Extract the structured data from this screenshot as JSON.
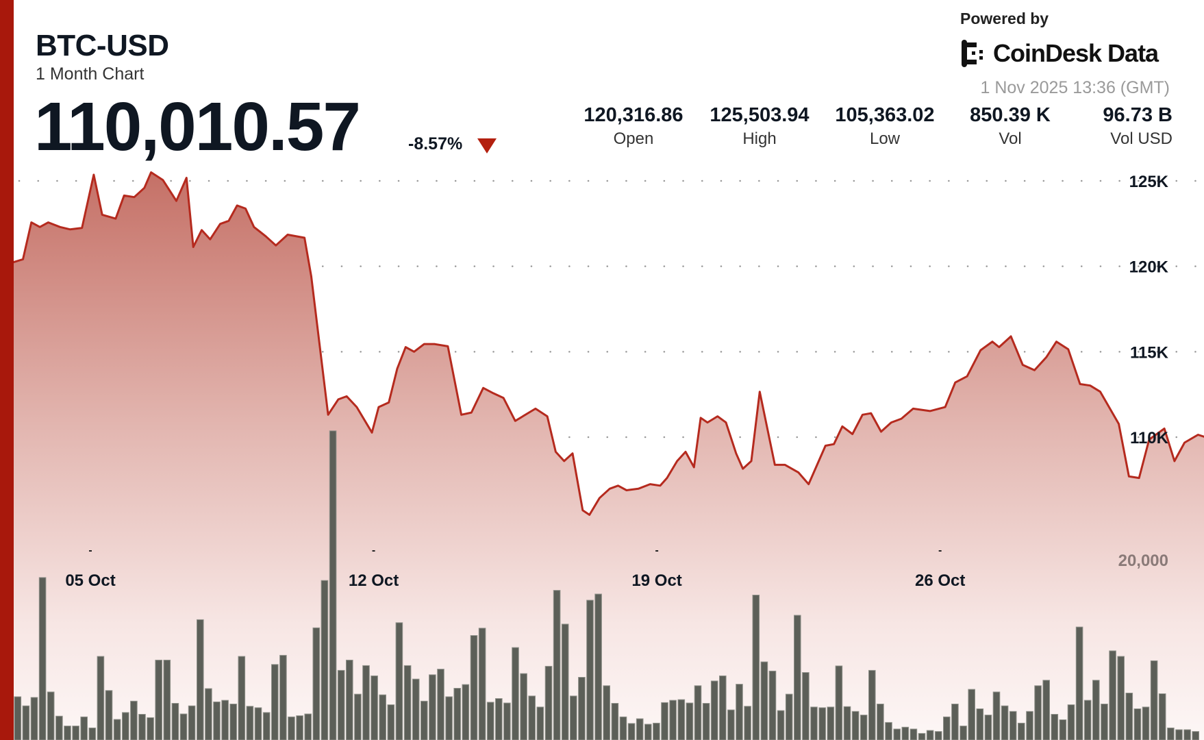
{
  "header": {
    "symbol": "BTC-USD",
    "period": "1 Month Chart",
    "price": "110,010.57",
    "change_pct": "-8.57%",
    "direction": "down",
    "accent_color": "#a8180c"
  },
  "stats": [
    {
      "value": "120,316.86",
      "label": "Open"
    },
    {
      "value": "125,503.94",
      "label": "High"
    },
    {
      "value": "105,363.02",
      "label": "Low"
    },
    {
      "value": "850.39 K",
      "label": "Vol"
    },
    {
      "value": "96.73 B",
      "label": "Vol USD"
    }
  ],
  "branding": {
    "powered_by": "Powered by",
    "logo_text": "CoinDesk Data",
    "timestamp": "1 Nov 2025 13:36 (GMT)"
  },
  "chart_data": {
    "type": "area",
    "line_color": "#b52a1e",
    "volume_color": "#5c5f58",
    "grid": "dotted-horizontal",
    "y_ticks": [
      {
        "value": 125000,
        "label": "125K"
      },
      {
        "value": 120000,
        "label": "120K"
      },
      {
        "value": 115000,
        "label": "115K"
      },
      {
        "value": 110000,
        "label": "110K"
      }
    ],
    "volume_ticks": [
      {
        "value": 20000,
        "label": "20,000"
      }
    ],
    "x_ticks": [
      {
        "date": "2025-10-05 00:00",
        "label": "05 Oct"
      },
      {
        "date": "2025-10-12 00:00",
        "label": "12 Oct"
      },
      {
        "date": "2025-10-19 00:00",
        "label": "19 Oct"
      },
      {
        "date": "2025-10-26 00:00",
        "label": "26 Oct"
      }
    ],
    "x_range": [
      "2025-10-03 02:00",
      "2025-11-01 13:00"
    ],
    "price_series": [
      [
        "2025-10-03 02:00",
        120230
      ],
      [
        "2025-10-03 08:00",
        120410
      ],
      [
        "2025-10-03 13:00",
        122570
      ],
      [
        "2025-10-03 18:00",
        122300
      ],
      [
        "2025-10-03 23:00",
        122570
      ],
      [
        "2025-10-04 06:00",
        122300
      ],
      [
        "2025-10-04 12:00",
        122160
      ],
      [
        "2025-10-04 19:00",
        122250
      ],
      [
        "2025-10-05 02:00",
        125360
      ],
      [
        "2025-10-05 07:00",
        123020
      ],
      [
        "2025-10-05 15:00",
        122790
      ],
      [
        "2025-10-05 20:00",
        124140
      ],
      [
        "2025-10-06 02:00",
        124050
      ],
      [
        "2025-10-06 08:00",
        124590
      ],
      [
        "2025-10-06 12:00",
        125500
      ],
      [
        "2025-10-06 19:00",
        125050
      ],
      [
        "2025-10-07 03:00",
        123830
      ],
      [
        "2025-10-07 09:00",
        125180
      ],
      [
        "2025-10-07 13:00",
        121130
      ],
      [
        "2025-10-07 18:00",
        122120
      ],
      [
        "2025-10-07 23:00",
        121580
      ],
      [
        "2025-10-08 05:00",
        122480
      ],
      [
        "2025-10-08 10:00",
        122660
      ],
      [
        "2025-10-08 15:00",
        123560
      ],
      [
        "2025-10-08 20:00",
        123380
      ],
      [
        "2025-10-09 01:00",
        122300
      ],
      [
        "2025-10-09 08:00",
        121760
      ],
      [
        "2025-10-09 14:00",
        121220
      ],
      [
        "2025-10-09 21:00",
        121850
      ],
      [
        "2025-10-10 07:00",
        121670
      ],
      [
        "2025-10-10 11:00",
        119410
      ],
      [
        "2025-10-10 16:00",
        115360
      ],
      [
        "2025-10-10 21:00",
        111310
      ],
      [
        "2025-10-11 03:00",
        112210
      ],
      [
        "2025-10-11 08:00",
        112390
      ],
      [
        "2025-10-11 14:00",
        111760
      ],
      [
        "2025-10-11 23:00",
        110270
      ],
      [
        "2025-10-12 03:00",
        111760
      ],
      [
        "2025-10-12 09:00",
        112030
      ],
      [
        "2025-10-12 14:00",
        114010
      ],
      [
        "2025-10-12 19:00",
        115270
      ],
      [
        "2025-10-13 00:00",
        115000
      ],
      [
        "2025-10-13 06:00",
        115450
      ],
      [
        "2025-10-13 12:00",
        115450
      ],
      [
        "2025-10-13 20:00",
        115320
      ],
      [
        "2025-10-14 04:00",
        111310
      ],
      [
        "2025-10-14 10:00",
        111440
      ],
      [
        "2025-10-14 17:00",
        112880
      ],
      [
        "2025-10-14 23:00",
        112570
      ],
      [
        "2025-10-15 05:00",
        112300
      ],
      [
        "2025-10-15 12:00",
        110950
      ],
      [
        "2025-10-16 00:00",
        111670
      ],
      [
        "2025-10-16 07:00",
        111220
      ],
      [
        "2025-10-16 12:00",
        109140
      ],
      [
        "2025-10-16 17:00",
        108600
      ],
      [
        "2025-10-16 22:00",
        109050
      ],
      [
        "2025-10-17 04:00",
        105720
      ],
      [
        "2025-10-17 08:00",
        105450
      ],
      [
        "2025-10-17 14:00",
        106440
      ],
      [
        "2025-10-17 20:00",
        106980
      ],
      [
        "2025-10-18 01:00",
        107160
      ],
      [
        "2025-10-18 06:00",
        106890
      ],
      [
        "2025-10-18 13:00",
        106980
      ],
      [
        "2025-10-18 20:00",
        107250
      ],
      [
        "2025-10-19 02:00",
        107160
      ],
      [
        "2025-10-19 06:00",
        107610
      ],
      [
        "2025-10-19 12:00",
        108600
      ],
      [
        "2025-10-19 17:00",
        109140
      ],
      [
        "2025-10-19 22:00",
        108240
      ],
      [
        "2025-10-20 02:00",
        111130
      ],
      [
        "2025-10-20 06:00",
        110860
      ],
      [
        "2025-10-20 12:00",
        111220
      ],
      [
        "2025-10-20 17:00",
        110860
      ],
      [
        "2025-10-20 23:00",
        109050
      ],
      [
        "2025-10-21 03:00",
        108150
      ],
      [
        "2025-10-21 08:00",
        108600
      ],
      [
        "2025-10-21 13:00",
        112660
      ],
      [
        "2025-10-21 22:00",
        108380
      ],
      [
        "2025-10-22 04:00",
        108380
      ],
      [
        "2025-10-22 12:00",
        107930
      ],
      [
        "2025-10-22 18:00",
        107250
      ],
      [
        "2025-10-23 04:00",
        109500
      ],
      [
        "2025-10-23 09:00",
        109590
      ],
      [
        "2025-10-23 14:00",
        110630
      ],
      [
        "2025-10-23 20:00",
        110180
      ],
      [
        "2025-10-24 02:00",
        111310
      ],
      [
        "2025-10-24 07:00",
        111400
      ],
      [
        "2025-10-24 13:00",
        110320
      ],
      [
        "2025-10-24 19:00",
        110860
      ],
      [
        "2025-10-25 01:00",
        111080
      ],
      [
        "2025-10-25 08:00",
        111670
      ],
      [
        "2025-10-25 18:00",
        111530
      ],
      [
        "2025-10-26 03:00",
        111760
      ],
      [
        "2025-10-26 09:00",
        113200
      ],
      [
        "2025-10-26 16:00",
        113560
      ],
      [
        "2025-10-27 00:00",
        115090
      ],
      [
        "2025-10-27 07:00",
        115590
      ],
      [
        "2025-10-27 11:00",
        115270
      ],
      [
        "2025-10-27 18:00",
        115900
      ],
      [
        "2025-10-28 01:00",
        114230
      ],
      [
        "2025-10-28 08:00",
        113920
      ],
      [
        "2025-10-28 15:00",
        114680
      ],
      [
        "2025-10-28 21:00",
        115590
      ],
      [
        "2025-10-29 04:00",
        115140
      ],
      [
        "2025-10-29 11:00",
        113110
      ],
      [
        "2025-10-29 17:00",
        113020
      ],
      [
        "2025-10-29 23:00",
        112660
      ],
      [
        "2025-10-30 10:00",
        110770
      ],
      [
        "2025-10-30 16:00",
        107700
      ],
      [
        "2025-10-30 22:00",
        107610
      ],
      [
        "2025-10-31 04:00",
        109860
      ],
      [
        "2025-10-31 13:00",
        110500
      ],
      [
        "2025-10-31 19:00",
        108600
      ],
      [
        "2025-11-01 01:00",
        109680
      ],
      [
        "2025-11-01 09:00",
        110140
      ],
      [
        "2025-11-01 13:00",
        110011
      ]
    ],
    "volume_values": [
      4800,
      3790,
      4720,
      18030,
      5330,
      2650,
      1550,
      1550,
      2560,
      1340,
      9280,
      5490,
      2280,
      3050,
      4310,
      2850,
      2480,
      8870,
      8870,
      4070,
      2890,
      3790,
      13350,
      5700,
      4230,
      4400,
      3990,
      9280,
      3740,
      3580,
      3050,
      8380,
      9400,
      2560,
      2690,
      2890,
      12450,
      17700,
      34310,
      7730,
      8870,
      5090,
      8260,
      7120,
      5010,
      3910,
      13020,
      8260,
      6760,
      4310,
      7240,
      7860,
      4800,
      5740,
      6150,
      11600,
      12410,
      4190,
      4600,
      4110,
      10260,
      7370,
      4880,
      3660,
      8180,
      16610,
      12860,
      4880,
      6960,
      15510,
      16200,
      6020,
      4070,
      2560,
      1830,
      2360,
      1750,
      1870,
      4150,
      4400,
      4480,
      4110,
      6020,
      4070,
      6550,
      7120,
      3340,
      6190,
      3740,
      16080,
      8670,
      7650,
      3260,
      5090,
      13840,
      7490,
      3660,
      3580,
      3660,
      8220,
      3700,
      3170,
      2770,
      7730,
      3990,
      1950,
      1220,
      1420,
      1220,
      730,
      1060,
      940,
      2560,
      3990,
      1550,
      5620,
      3460,
      2770,
      5330,
      3790,
      3170,
      1870,
      3170,
      6020,
      6630,
      2850,
      2240,
      3910,
      12540,
      4400,
      6630,
      3990,
      9890,
      9280,
      5210,
      3460,
      3660,
      8790,
      5130,
      1340,
      1140,
      1140,
      940
    ]
  }
}
